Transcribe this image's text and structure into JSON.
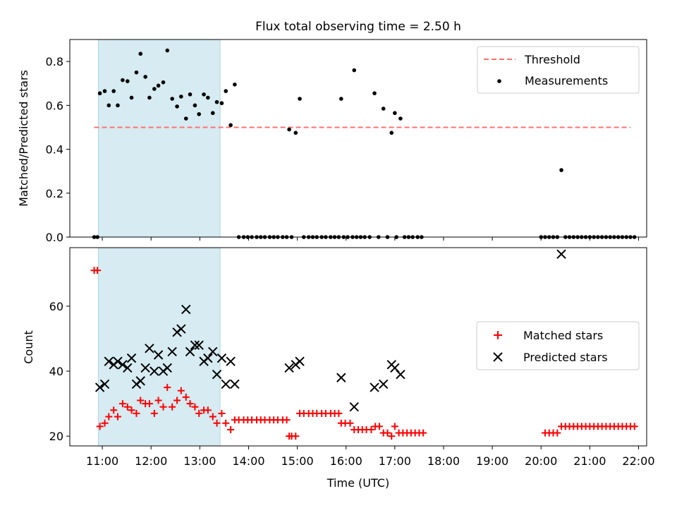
{
  "chart_data": [
    {
      "type": "scatter",
      "title": "Flux total observing time = 2.50 h",
      "xlabel": "",
      "ylabel": "Matched/Predicted stars",
      "x_unit": "time of day (UTC)",
      "xlim": [
        "10:20",
        "22:10"
      ],
      "ylim": [
        0,
        0.9
      ],
      "yticks": [
        "0.0",
        "0.2",
        "0.4",
        "0.6",
        "0.8"
      ],
      "xtick_labels": "none",
      "grid": false,
      "legend": "top-right",
      "shaded_interval": [
        "10:55",
        "13:25"
      ],
      "shaded_color": "#add8e6",
      "threshold": {
        "name": "Threshold",
        "value": 0.5,
        "x": [
          "10:50",
          "21:50"
        ],
        "color": "#ff7070",
        "style": "dashed"
      },
      "series": [
        {
          "name": "Measurements",
          "color": "#000000",
          "marker": "dot",
          "points": [
            [
              "10:50",
              0
            ],
            [
              "10:54",
              0
            ],
            [
              "10:57",
              0.655
            ],
            [
              "11:03",
              0.665
            ],
            [
              "11:08",
              0.6
            ],
            [
              "11:14",
              0.665
            ],
            [
              "11:19",
              0.6
            ],
            [
              "11:25",
              0.715
            ],
            [
              "11:31",
              0.71
            ],
            [
              "11:36",
              0.635
            ],
            [
              "11:42",
              0.75
            ],
            [
              "11:47",
              0.835
            ],
            [
              "11:53",
              0.73
            ],
            [
              "11:58",
              0.635
            ],
            [
              "12:04",
              0.675
            ],
            [
              "12:09",
              0.69
            ],
            [
              "12:15",
              0.705
            ],
            [
              "12:20",
              0.85
            ],
            [
              "12:26",
              0.63
            ],
            [
              "12:32",
              0.595
            ],
            [
              "12:37",
              0.64
            ],
            [
              "12:43",
              0.54
            ],
            [
              "12:48",
              0.65
            ],
            [
              "12:54",
              0.6
            ],
            [
              "12:59",
              0.56
            ],
            [
              "13:05",
              0.65
            ],
            [
              "13:10",
              0.635
            ],
            [
              "13:16",
              0.565
            ],
            [
              "13:21",
              0.615
            ],
            [
              "13:27",
              0.61
            ],
            [
              "13:32",
              0.665
            ],
            [
              "13:38",
              0.51
            ],
            [
              "13:43",
              0.695
            ],
            [
              "13:48",
              0
            ],
            [
              "13:54",
              0
            ],
            [
              "13:59",
              0
            ],
            [
              "14:04",
              0
            ],
            [
              "14:10",
              0
            ],
            [
              "14:15",
              0
            ],
            [
              "14:20",
              0
            ],
            [
              "14:26",
              0
            ],
            [
              "14:31",
              0
            ],
            [
              "14:36",
              0
            ],
            [
              "14:42",
              0
            ],
            [
              "14:47",
              0
            ],
            [
              "14:50",
              0.49
            ],
            [
              "14:53",
              0
            ],
            [
              "14:58",
              0.475
            ],
            [
              "15:03",
              0.63
            ],
            [
              "15:08",
              0
            ],
            [
              "15:14",
              0
            ],
            [
              "15:19",
              0
            ],
            [
              "15:24",
              0
            ],
            [
              "15:30",
              0
            ],
            [
              "15:35",
              0
            ],
            [
              "15:41",
              0
            ],
            [
              "15:46",
              0
            ],
            [
              "15:51",
              0
            ],
            [
              "15:54",
              0.63
            ],
            [
              "15:57",
              0
            ],
            [
              "16:02",
              0
            ],
            [
              "16:08",
              0
            ],
            [
              "16:10",
              0.76
            ],
            [
              "16:13",
              0
            ],
            [
              "16:18",
              0
            ],
            [
              "16:23",
              0
            ],
            [
              "16:29",
              0
            ],
            [
              "16:35",
              0.655
            ],
            [
              "16:40",
              0
            ],
            [
              "16:46",
              0.585
            ],
            [
              "16:51",
              0
            ],
            [
              "16:56",
              0.475
            ],
            [
              "17:00",
              0.565
            ],
            [
              "17:02",
              0
            ],
            [
              "17:07",
              0.54
            ],
            [
              "17:12",
              0
            ],
            [
              "17:17",
              0
            ],
            [
              "17:22",
              0
            ],
            [
              "17:28",
              0
            ],
            [
              "17:33",
              0
            ],
            [
              "20:00",
              0
            ],
            [
              "20:05",
              0
            ],
            [
              "20:10",
              0
            ],
            [
              "20:15",
              0
            ],
            [
              "20:20",
              0
            ],
            [
              "20:25",
              0.305
            ],
            [
              "20:30",
              0
            ],
            [
              "20:35",
              0
            ],
            [
              "20:40",
              0
            ],
            [
              "20:45",
              0
            ],
            [
              "20:50",
              0
            ],
            [
              "20:55",
              0
            ],
            [
              "21:00",
              0
            ],
            [
              "21:05",
              0
            ],
            [
              "21:10",
              0
            ],
            [
              "21:15",
              0
            ],
            [
              "21:20",
              0
            ],
            [
              "21:25",
              0
            ],
            [
              "21:30",
              0
            ],
            [
              "21:35",
              0
            ],
            [
              "21:40",
              0
            ],
            [
              "21:45",
              0
            ],
            [
              "21:50",
              0
            ],
            [
              "21:55",
              0
            ]
          ]
        }
      ]
    },
    {
      "type": "scatter",
      "title": "",
      "xlabel": "Time (UTC)",
      "ylabel": "Count",
      "x_unit": "time of day (UTC)",
      "xlim": [
        "10:20",
        "22:10"
      ],
      "ylim": [
        17,
        78
      ],
      "yticks": [
        "20",
        "40",
        "60"
      ],
      "xticks": [
        "11:00",
        "12:00",
        "13:00",
        "14:00",
        "15:00",
        "16:00",
        "17:00",
        "18:00",
        "19:00",
        "20:00",
        "21:00",
        "22:00"
      ],
      "grid": false,
      "legend": "center-right",
      "shaded_interval": [
        "10:55",
        "13:25"
      ],
      "shaded_color": "#add8e6",
      "series": [
        {
          "name": "Matched stars",
          "color": "#ff0000",
          "marker": "plus",
          "points": [
            [
              "10:50",
              71
            ],
            [
              "10:54",
              71
            ],
            [
              "10:57",
              23
            ],
            [
              "11:03",
              24
            ],
            [
              "11:08",
              26
            ],
            [
              "11:14",
              28
            ],
            [
              "11:19",
              26
            ],
            [
              "11:25",
              30
            ],
            [
              "11:31",
              29
            ],
            [
              "11:36",
              28
            ],
            [
              "11:42",
              27
            ],
            [
              "11:47",
              31
            ],
            [
              "11:53",
              30
            ],
            [
              "11:58",
              30
            ],
            [
              "12:04",
              27
            ],
            [
              "12:09",
              31
            ],
            [
              "12:15",
              29
            ],
            [
              "12:20",
              35
            ],
            [
              "12:26",
              29
            ],
            [
              "12:32",
              31
            ],
            [
              "12:37",
              34
            ],
            [
              "12:43",
              32
            ],
            [
              "12:48",
              30
            ],
            [
              "12:54",
              29
            ],
            [
              "12:59",
              27
            ],
            [
              "13:05",
              28
            ],
            [
              "13:10",
              28
            ],
            [
              "13:16",
              26
            ],
            [
              "13:21",
              24
            ],
            [
              "13:27",
              27
            ],
            [
              "13:32",
              24
            ],
            [
              "13:38",
              22
            ],
            [
              "13:43",
              25
            ],
            [
              "13:48",
              25
            ],
            [
              "13:54",
              25
            ],
            [
              "13:59",
              25
            ],
            [
              "14:04",
              25
            ],
            [
              "14:10",
              25
            ],
            [
              "14:15",
              25
            ],
            [
              "14:20",
              25
            ],
            [
              "14:26",
              25
            ],
            [
              "14:31",
              25
            ],
            [
              "14:36",
              25
            ],
            [
              "14:42",
              25
            ],
            [
              "14:47",
              25
            ],
            [
              "14:50",
              20
            ],
            [
              "14:53",
              20
            ],
            [
              "14:58",
              20
            ],
            [
              "15:03",
              27
            ],
            [
              "15:08",
              27
            ],
            [
              "15:14",
              27
            ],
            [
              "15:19",
              27
            ],
            [
              "15:24",
              27
            ],
            [
              "15:30",
              27
            ],
            [
              "15:35",
              27
            ],
            [
              "15:41",
              27
            ],
            [
              "15:46",
              27
            ],
            [
              "15:51",
              27
            ],
            [
              "15:54",
              24
            ],
            [
              "15:59",
              24
            ],
            [
              "16:05",
              24
            ],
            [
              "16:10",
              22
            ],
            [
              "16:15",
              22
            ],
            [
              "16:20",
              22
            ],
            [
              "16:25",
              22
            ],
            [
              "16:31",
              22
            ],
            [
              "16:36",
              23
            ],
            [
              "16:41",
              23
            ],
            [
              "16:46",
              21
            ],
            [
              "16:51",
              21
            ],
            [
              "16:56",
              20
            ],
            [
              "17:00",
              23
            ],
            [
              "17:05",
              21
            ],
            [
              "17:10",
              21
            ],
            [
              "17:15",
              21
            ],
            [
              "17:20",
              21
            ],
            [
              "17:25",
              21
            ],
            [
              "17:30",
              21
            ],
            [
              "17:35",
              21
            ],
            [
              "20:05",
              21
            ],
            [
              "20:10",
              21
            ],
            [
              "20:15",
              21
            ],
            [
              "20:20",
              21
            ],
            [
              "20:25",
              23
            ],
            [
              "20:30",
              23
            ],
            [
              "20:35",
              23
            ],
            [
              "20:40",
              23
            ],
            [
              "20:45",
              23
            ],
            [
              "20:50",
              23
            ],
            [
              "20:55",
              23
            ],
            [
              "21:00",
              23
            ],
            [
              "21:05",
              23
            ],
            [
              "21:10",
              23
            ],
            [
              "21:15",
              23
            ],
            [
              "21:20",
              23
            ],
            [
              "21:25",
              23
            ],
            [
              "21:30",
              23
            ],
            [
              "21:35",
              23
            ],
            [
              "21:40",
              23
            ],
            [
              "21:45",
              23
            ],
            [
              "21:50",
              23
            ],
            [
              "21:55",
              23
            ]
          ]
        },
        {
          "name": "Predicted stars",
          "color": "#000000",
          "marker": "x",
          "points": [
            [
              "10:57",
              35
            ],
            [
              "11:03",
              36
            ],
            [
              "11:08",
              43
            ],
            [
              "11:14",
              42
            ],
            [
              "11:19",
              43
            ],
            [
              "11:25",
              42
            ],
            [
              "11:31",
              41
            ],
            [
              "11:36",
              44
            ],
            [
              "11:42",
              36
            ],
            [
              "11:47",
              37
            ],
            [
              "11:53",
              41
            ],
            [
              "11:58",
              47
            ],
            [
              "12:04",
              40
            ],
            [
              "12:09",
              45
            ],
            [
              "12:15",
              40
            ],
            [
              "12:20",
              41
            ],
            [
              "12:26",
              46
            ],
            [
              "12:32",
              52
            ],
            [
              "12:37",
              53
            ],
            [
              "12:43",
              59
            ],
            [
              "12:48",
              46
            ],
            [
              "12:54",
              48
            ],
            [
              "12:59",
              48
            ],
            [
              "13:05",
              43
            ],
            [
              "13:10",
              44
            ],
            [
              "13:16",
              46
            ],
            [
              "13:21",
              39
            ],
            [
              "13:27",
              44
            ],
            [
              "13:32",
              36
            ],
            [
              "13:38",
              43
            ],
            [
              "13:43",
              36
            ],
            [
              "14:50",
              41
            ],
            [
              "14:58",
              42
            ],
            [
              "15:03",
              43
            ],
            [
              "15:54",
              38
            ],
            [
              "16:10",
              29
            ],
            [
              "16:35",
              35
            ],
            [
              "16:46",
              36
            ],
            [
              "16:56",
              42
            ],
            [
              "17:00",
              41
            ],
            [
              "17:07",
              39
            ],
            [
              "20:25",
              76
            ]
          ]
        }
      ]
    }
  ]
}
